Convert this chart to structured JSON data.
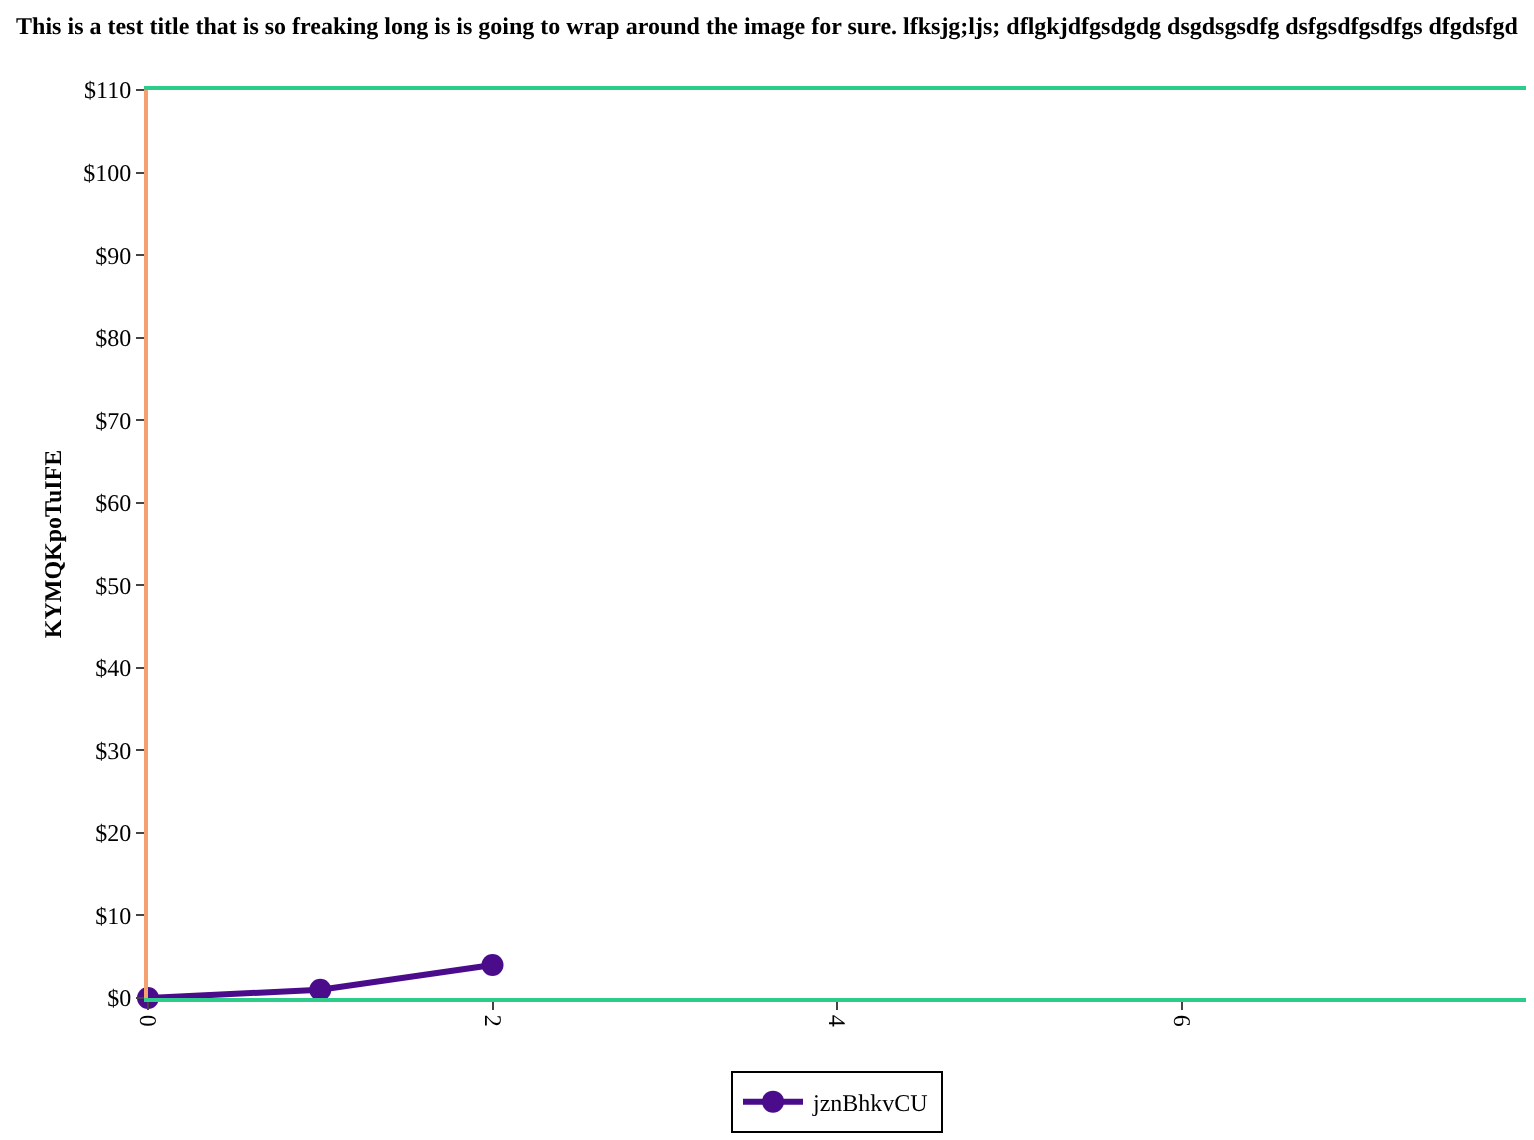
{
  "chart_data": {
    "type": "line",
    "title": "This is a test title that is so freaking long is is going to wrap around the image for sure. lfksjg;ljs; dflgkjdfgsdgdg dsgdsgsdfg dsfgsdfgsdfgs dfgdsfgd",
    "ylabel": "KYMQKpoTuIFE",
    "x": [
      0,
      1,
      2
    ],
    "series": [
      {
        "name": "jznBhkvCU",
        "color": "#4b0c8c",
        "values": [
          0,
          1,
          4
        ]
      }
    ],
    "xlim": [
      0,
      8
    ],
    "xticks": [
      0,
      2,
      4,
      6
    ],
    "ylim": [
      0,
      110
    ],
    "yticks": [
      {
        "value": 0,
        "label": "$0"
      },
      {
        "value": 10,
        "label": "$10"
      },
      {
        "value": 20,
        "label": "$20"
      },
      {
        "value": 30,
        "label": "$30"
      },
      {
        "value": 40,
        "label": "$40"
      },
      {
        "value": 50,
        "label": "$50"
      },
      {
        "value": 60,
        "label": "$60"
      },
      {
        "value": 70,
        "label": "$70"
      },
      {
        "value": 80,
        "label": "$80"
      },
      {
        "value": 90,
        "label": "$90"
      },
      {
        "value": 100,
        "label": "$100"
      },
      {
        "value": 110,
        "label": "$110"
      }
    ],
    "grid": false,
    "legend": "bottom",
    "marker": "circle",
    "line_style": "solid"
  }
}
